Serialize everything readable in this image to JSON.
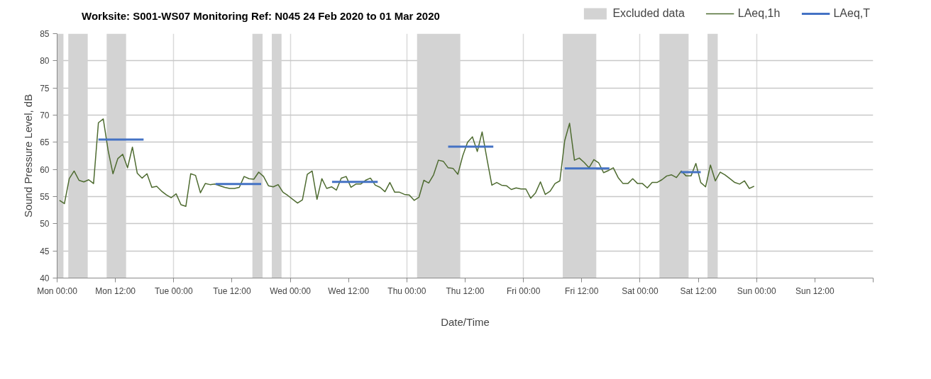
{
  "chart_data": {
    "type": "line",
    "title": "Worksite: S001-WS07    Monitoring Ref: N045      24 Feb 2020 to 01 Mar 2020",
    "xlabel": "Date/Time",
    "ylabel": "Sound Pressure Level, dB",
    "xlim": [
      "2020-02-24T00:00",
      "2020-03-02T00:00"
    ],
    "ylim": [
      40,
      85
    ],
    "xticks": [
      {
        "value": "2020-02-24T00:00",
        "label": "Mon 00:00"
      },
      {
        "value": "2020-02-24T12:00",
        "label": "Mon 12:00"
      },
      {
        "value": "2020-02-25T00:00",
        "label": "Tue 00:00"
      },
      {
        "value": "2020-02-25T12:00",
        "label": "Tue 12:00"
      },
      {
        "value": "2020-02-26T00:00",
        "label": "Wed 00:00"
      },
      {
        "value": "2020-02-26T12:00",
        "label": "Wed 12:00"
      },
      {
        "value": "2020-02-27T00:00",
        "label": "Thu 00:00"
      },
      {
        "value": "2020-02-27T12:00",
        "label": "Thu 12:00"
      },
      {
        "value": "2020-02-28T00:00",
        "label": "Fri 00:00"
      },
      {
        "value": "2020-02-28T12:00",
        "label": "Fri 12:00"
      },
      {
        "value": "2020-02-29T00:00",
        "label": "Sat 00:00"
      },
      {
        "value": "2020-02-29T12:00",
        "label": "Sat 12:00"
      },
      {
        "value": "2020-03-01T00:00",
        "label": "Sun 00:00"
      },
      {
        "value": "2020-03-01T12:00",
        "label": "Sun 12:00"
      },
      {
        "value": "2020-03-02T00:00",
        "label": null
      }
    ],
    "yticks": [
      40,
      45,
      50,
      55,
      60,
      65,
      70,
      75,
      80,
      85
    ],
    "grid": true,
    "legend": "top right",
    "bands": [
      {
        "axis": "x",
        "from": "2020-02-24T00:00",
        "to": "2020-02-24T01:18",
        "color": "#d3d3d3",
        "label": "Excluded data"
      },
      {
        "axis": "x",
        "from": "2020-02-24T02:18",
        "to": "2020-02-24T06:18",
        "color": "#d3d3d3"
      },
      {
        "axis": "x",
        "from": "2020-02-24T10:12",
        "to": "2020-02-24T14:12",
        "color": "#d3d3d3"
      },
      {
        "axis": "x",
        "from": "2020-02-25T16:12",
        "to": "2020-02-25T18:18",
        "color": "#d3d3d3"
      },
      {
        "axis": "x",
        "from": "2020-02-25T20:12",
        "to": "2020-02-25T22:12",
        "color": "#d3d3d3"
      },
      {
        "axis": "x",
        "from": "2020-02-27T02:06",
        "to": "2020-02-27T11:00",
        "color": "#d3d3d3"
      },
      {
        "axis": "x",
        "from": "2020-02-28T08:06",
        "to": "2020-02-28T15:00",
        "color": "#d3d3d3"
      },
      {
        "axis": "x",
        "from": "2020-02-29T04:00",
        "to": "2020-02-29T10:00",
        "color": "#d3d3d3"
      },
      {
        "axis": "x",
        "from": "2020-02-29T13:54",
        "to": "2020-02-29T16:00",
        "color": "#d3d3d3"
      }
    ],
    "series": [
      {
        "name": "LAeq,1h",
        "color": "#4e6b30",
        "x": [
          "2020-02-24T00:30",
          "2020-02-24T01:30",
          "2020-02-24T02:30",
          "2020-02-24T03:30",
          "2020-02-24T04:30",
          "2020-02-24T05:30",
          "2020-02-24T06:30",
          "2020-02-24T07:30",
          "2020-02-24T08:30",
          "2020-02-24T09:30",
          "2020-02-24T10:30",
          "2020-02-24T11:30",
          "2020-02-24T12:30",
          "2020-02-24T13:30",
          "2020-02-24T14:30",
          "2020-02-24T15:30",
          "2020-02-24T16:30",
          "2020-02-24T17:30",
          "2020-02-24T18:30",
          "2020-02-24T19:30",
          "2020-02-24T20:30",
          "2020-02-24T21:30",
          "2020-02-24T22:30",
          "2020-02-24T23:30",
          "2020-02-25T00:30",
          "2020-02-25T01:30",
          "2020-02-25T02:30",
          "2020-02-25T03:30",
          "2020-02-25T04:30",
          "2020-02-25T05:30",
          "2020-02-25T06:30",
          "2020-02-25T07:30",
          "2020-02-25T08:30",
          "2020-02-25T09:30",
          "2020-02-25T10:30",
          "2020-02-25T11:30",
          "2020-02-25T12:30",
          "2020-02-25T13:30",
          "2020-02-25T14:30",
          "2020-02-25T15:30",
          "2020-02-25T16:30",
          "2020-02-25T17:30",
          "2020-02-25T18:30",
          "2020-02-25T19:30",
          "2020-02-25T20:30",
          "2020-02-25T21:30",
          "2020-02-25T22:30",
          "2020-02-25T23:30",
          "2020-02-26T00:30",
          "2020-02-26T01:30",
          "2020-02-26T02:30",
          "2020-02-26T03:30",
          "2020-02-26T04:30",
          "2020-02-26T05:30",
          "2020-02-26T06:30",
          "2020-02-26T07:30",
          "2020-02-26T08:30",
          "2020-02-26T09:30",
          "2020-02-26T10:30",
          "2020-02-26T11:30",
          "2020-02-26T12:30",
          "2020-02-26T13:30",
          "2020-02-26T14:30",
          "2020-02-26T15:30",
          "2020-02-26T16:30",
          "2020-02-26T17:30",
          "2020-02-26T18:30",
          "2020-02-26T19:30",
          "2020-02-26T20:30",
          "2020-02-26T21:30",
          "2020-02-26T22:30",
          "2020-02-26T23:30",
          "2020-02-27T00:30",
          "2020-02-27T01:30",
          "2020-02-27T02:30",
          "2020-02-27T03:30",
          "2020-02-27T04:30",
          "2020-02-27T05:30",
          "2020-02-27T06:30",
          "2020-02-27T07:30",
          "2020-02-27T08:30",
          "2020-02-27T09:30",
          "2020-02-27T10:30",
          "2020-02-27T11:30",
          "2020-02-27T12:30",
          "2020-02-27T13:30",
          "2020-02-27T14:30",
          "2020-02-27T15:30",
          "2020-02-27T16:30",
          "2020-02-27T17:30",
          "2020-02-27T18:30",
          "2020-02-27T19:30",
          "2020-02-27T20:30",
          "2020-02-27T21:30",
          "2020-02-27T22:30",
          "2020-02-27T23:30",
          "2020-02-28T00:30",
          "2020-02-28T01:30",
          "2020-02-28T02:30",
          "2020-02-28T03:30",
          "2020-02-28T04:30",
          "2020-02-28T05:30",
          "2020-02-28T06:30",
          "2020-02-28T07:30",
          "2020-02-28T08:30",
          "2020-02-28T09:30",
          "2020-02-28T10:30",
          "2020-02-28T11:30",
          "2020-02-28T12:30",
          "2020-02-28T13:30",
          "2020-02-28T14:30",
          "2020-02-28T15:30",
          "2020-02-28T16:30",
          "2020-02-28T17:30",
          "2020-02-28T18:30",
          "2020-02-28T19:30",
          "2020-02-28T20:30",
          "2020-02-28T21:30",
          "2020-02-28T22:30",
          "2020-02-28T23:30",
          "2020-02-29T00:30",
          "2020-02-29T01:30",
          "2020-02-29T02:30",
          "2020-02-29T03:30",
          "2020-02-29T04:30",
          "2020-02-29T05:30",
          "2020-02-29T06:30",
          "2020-02-29T07:30",
          "2020-02-29T08:30",
          "2020-02-29T09:30",
          "2020-02-29T10:30",
          "2020-02-29T11:30",
          "2020-02-29T12:30",
          "2020-02-29T13:30",
          "2020-02-29T14:30",
          "2020-02-29T15:30",
          "2020-02-29T16:30",
          "2020-02-29T17:30",
          "2020-02-29T18:30",
          "2020-02-29T19:30",
          "2020-02-29T20:30",
          "2020-02-29T21:30",
          "2020-02-29T22:30",
          "2020-02-29T23:30"
        ],
        "values": [
          54.3,
          53.7,
          58.3,
          59.7,
          58.0,
          57.7,
          58.1,
          57.4,
          68.6,
          69.3,
          63.5,
          59.2,
          62.0,
          62.8,
          60.3,
          64.1,
          59.3,
          58.4,
          59.2,
          56.7,
          56.9,
          56.0,
          55.3,
          54.8,
          55.5,
          53.5,
          53.2,
          59.2,
          58.9,
          55.7,
          57.4,
          57.2,
          57.3,
          57.0,
          56.7,
          56.5,
          56.5,
          56.7,
          58.7,
          58.3,
          58.2,
          59.5,
          58.7,
          57.0,
          56.8,
          57.2,
          55.8,
          55.2,
          54.5,
          53.8,
          54.4,
          59.1,
          59.7,
          54.5,
          58.3,
          56.5,
          56.8,
          56.2,
          58.4,
          58.7,
          56.7,
          57.3,
          57.3,
          58.0,
          58.4,
          57.1,
          56.7,
          55.9,
          57.6,
          55.8,
          55.8,
          55.4,
          55.3,
          54.3,
          54.9,
          58.0,
          57.5,
          59.0,
          61.7,
          61.5,
          60.3,
          60.2,
          59.1,
          62.5,
          65.0,
          66.0,
          63.3,
          66.9,
          61.9,
          57.1,
          57.6,
          57.1,
          57.0,
          56.3,
          56.6,
          56.4,
          56.4,
          54.7,
          55.7,
          57.7,
          55.4,
          56.0,
          57.4,
          57.9,
          65.3,
          68.5,
          61.7,
          62.1,
          61.3,
          60.3,
          61.8,
          61.2,
          59.4,
          59.8,
          60.3,
          58.5,
          57.4,
          57.4,
          58.3,
          57.4,
          57.4,
          56.6,
          57.6,
          57.6,
          58.1,
          58.8,
          59.0,
          58.5,
          59.7,
          58.8,
          58.8,
          61.1,
          57.6,
          56.8,
          60.8,
          57.9,
          59.5,
          59.0,
          58.3,
          57.6,
          57.3,
          57.9,
          56.5,
          56.9
        ]
      },
      {
        "name": "LAeq,T",
        "color": "#4472c4",
        "x": [
          "2020-02-24T08:30",
          "2020-02-24T17:48",
          null,
          "2020-02-25T08:36",
          "2020-02-25T18:00",
          null,
          "2020-02-26T08:36",
          "2020-02-26T18:00",
          null,
          "2020-02-27T08:30",
          "2020-02-27T17:48",
          null,
          "2020-02-28T08:30",
          "2020-02-28T17:42",
          null,
          "2020-02-29T08:24",
          "2020-02-29T12:30"
        ],
        "values": [
          65.5,
          65.5,
          null,
          57.3,
          57.3,
          null,
          57.7,
          57.7,
          null,
          64.2,
          64.2,
          null,
          60.2,
          60.2,
          null,
          59.5,
          59.5
        ]
      }
    ]
  }
}
